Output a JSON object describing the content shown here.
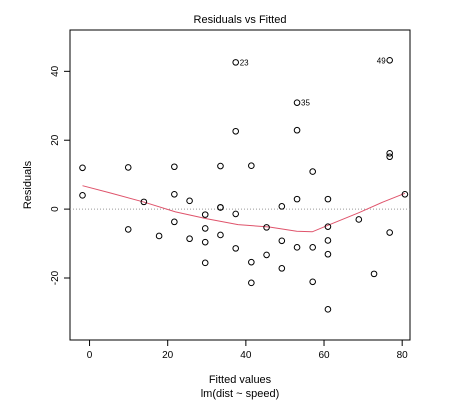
{
  "chart_data": {
    "type": "scatter",
    "title": "Residuals vs Fitted",
    "xlabel": "Fitted values",
    "xlabel2": "lm(dist ~ speed)",
    "ylabel": "Residuals",
    "xlim": [
      -5,
      82
    ],
    "ylim": [
      -38,
      52
    ],
    "x_ticks": [
      0,
      20,
      40,
      60,
      80
    ],
    "y_ticks": [
      -20,
      0,
      20,
      40
    ],
    "x_tick_labels": [
      "0",
      "20",
      "40",
      "60",
      "80"
    ],
    "y_tick_labels": [
      "-20",
      "0",
      "20",
      "40"
    ],
    "reference_line_y": 0,
    "points": [
      {
        "x": -1.8,
        "y": 4.0
      },
      {
        "x": -1.8,
        "y": 12.0
      },
      {
        "x": 9.9,
        "y": -5.9
      },
      {
        "x": 9.9,
        "y": 12.1
      },
      {
        "x": 13.9,
        "y": 2.1
      },
      {
        "x": 17.8,
        "y": -7.8
      },
      {
        "x": 21.7,
        "y": -3.7
      },
      {
        "x": 21.7,
        "y": 4.3
      },
      {
        "x": 21.7,
        "y": 12.3
      },
      {
        "x": 25.6,
        "y": -8.6
      },
      {
        "x": 25.6,
        "y": 2.4
      },
      {
        "x": 29.6,
        "y": -15.6
      },
      {
        "x": 29.6,
        "y": -9.6
      },
      {
        "x": 29.6,
        "y": -5.6
      },
      {
        "x": 29.6,
        "y": -1.6
      },
      {
        "x": 33.5,
        "y": -7.5
      },
      {
        "x": 33.5,
        "y": 0.5
      },
      {
        "x": 33.5,
        "y": 0.5
      },
      {
        "x": 33.5,
        "y": 12.5
      },
      {
        "x": 37.4,
        "y": -11.4
      },
      {
        "x": 37.4,
        "y": -1.4
      },
      {
        "x": 37.4,
        "y": 22.6
      },
      {
        "x": 37.4,
        "y": 42.6
      },
      {
        "x": 41.4,
        "y": -21.4
      },
      {
        "x": 41.4,
        "y": -15.4
      },
      {
        "x": 41.4,
        "y": 12.6
      },
      {
        "x": 45.3,
        "y": -13.3
      },
      {
        "x": 45.3,
        "y": -5.3
      },
      {
        "x": 49.2,
        "y": -17.2
      },
      {
        "x": 49.2,
        "y": -9.2
      },
      {
        "x": 49.2,
        "y": 0.8
      },
      {
        "x": 53.1,
        "y": -11.1
      },
      {
        "x": 53.1,
        "y": 2.9
      },
      {
        "x": 53.1,
        "y": 22.9
      },
      {
        "x": 53.1,
        "y": 30.9
      },
      {
        "x": 57.1,
        "y": -21.1
      },
      {
        "x": 57.1,
        "y": -11.1
      },
      {
        "x": 57.1,
        "y": 10.9
      },
      {
        "x": 61.0,
        "y": -29.1
      },
      {
        "x": 61.0,
        "y": -13.1
      },
      {
        "x": 61.0,
        "y": -9.1
      },
      {
        "x": 61.0,
        "y": -5.1
      },
      {
        "x": 61.0,
        "y": 2.9
      },
      {
        "x": 68.9,
        "y": -3.0
      },
      {
        "x": 72.8,
        "y": -18.8
      },
      {
        "x": 76.8,
        "y": -6.8
      },
      {
        "x": 76.8,
        "y": 15.2
      },
      {
        "x": 76.8,
        "y": 16.2
      },
      {
        "x": 76.8,
        "y": 43.2
      },
      {
        "x": 80.7,
        "y": 4.3
      }
    ],
    "point_labels": [
      {
        "x": 37.4,
        "y": 42.6,
        "text": "23",
        "side": "right"
      },
      {
        "x": 53.1,
        "y": 30.9,
        "text": "35",
        "side": "right"
      },
      {
        "x": 76.8,
        "y": 43.2,
        "text": "49",
        "side": "left"
      }
    ],
    "smooth_line": [
      {
        "x": -1.8,
        "y": 6.8
      },
      {
        "x": 5,
        "y": 4.8
      },
      {
        "x": 14,
        "y": 2.0
      },
      {
        "x": 22,
        "y": -0.8
      },
      {
        "x": 30,
        "y": -2.8
      },
      {
        "x": 38,
        "y": -4.5
      },
      {
        "x": 46,
        "y": -5.2
      },
      {
        "x": 53,
        "y": -6.4
      },
      {
        "x": 57,
        "y": -6.6
      },
      {
        "x": 61,
        "y": -4.7
      },
      {
        "x": 69,
        "y": -1.0
      },
      {
        "x": 75,
        "y": 2.0
      },
      {
        "x": 80.7,
        "y": 4.6
      }
    ],
    "colors": {
      "smooth_line": "#df536b",
      "reference_line": "#999999",
      "points": "#000000"
    },
    "grid": false
  }
}
